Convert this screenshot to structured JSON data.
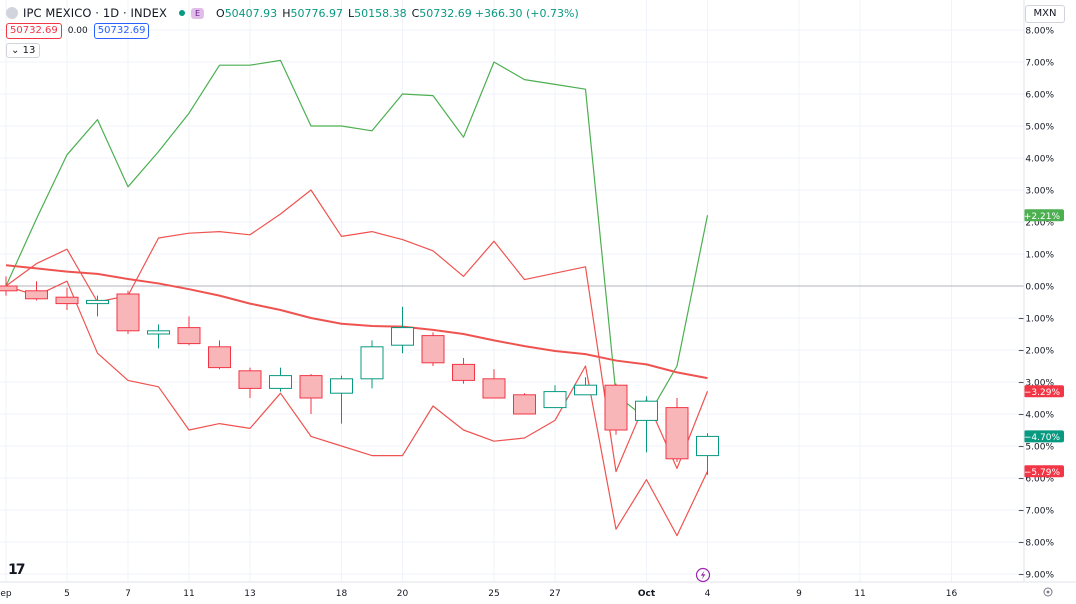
{
  "header": {
    "symbol": "IPC MEXICO · 1D · INDEX",
    "event_badge": "E",
    "open_label": "O",
    "open": "50407.93",
    "high_label": "H",
    "high": "50776.97",
    "low_label": "L",
    "low": "50158.38",
    "close_label": "C",
    "close": "50732.69",
    "change": "+366.30 (+0.73%)"
  },
  "quote": {
    "bid": "50732.69",
    "spread": "0.00",
    "ask": "50732.69"
  },
  "indicator_count": "13",
  "currency": "MXN",
  "colors": {
    "up": "#089981",
    "down": "#f23645",
    "green_line": "#4caf50",
    "red_line": "#ef5350",
    "grid": "#f0f3fa",
    "text": "#131722"
  },
  "chart_data": {
    "type": "candlestick",
    "y_unit": "percent",
    "ylim": [
      -9.3,
      8.3
    ],
    "y_ticks": [
      "8.00%",
      "7.00%",
      "6.00%",
      "5.00%",
      "4.00%",
      "3.00%",
      "2.00%",
      "1.00%",
      "0.00%",
      "−1.00%",
      "−2.00%",
      "−3.00%",
      "−4.00%",
      "−5.00%",
      "−6.00%",
      "−7.00%",
      "−8.00%",
      "−9.00%"
    ],
    "x_ticks": [
      {
        "label": "ep",
        "i": 0
      },
      {
        "label": "5",
        "i": 2
      },
      {
        "label": "7",
        "i": 4
      },
      {
        "label": "11",
        "i": 6
      },
      {
        "label": "13",
        "i": 8
      },
      {
        "label": "18",
        "i": 11
      },
      {
        "label": "20",
        "i": 13
      },
      {
        "label": "25",
        "i": 16
      },
      {
        "label": "27",
        "i": 18
      },
      {
        "label": "Oct",
        "i": 21
      },
      {
        "label": "4",
        "i": 23
      },
      {
        "label": "9",
        "i": 26
      },
      {
        "label": "11",
        "i": 28
      },
      {
        "label": "16",
        "i": 31
      }
    ],
    "candles": [
      {
        "o": 0.0,
        "h": 0.3,
        "l": -0.3,
        "c": -0.15
      },
      {
        "o": -0.15,
        "h": 0.15,
        "l": -0.45,
        "c": -0.4
      },
      {
        "o": -0.35,
        "h": -0.05,
        "l": -0.75,
        "c": -0.55
      },
      {
        "o": -0.55,
        "h": -0.3,
        "l": -0.95,
        "c": -0.45
      },
      {
        "o": -0.25,
        "h": -0.15,
        "l": -1.5,
        "c": -1.4
      },
      {
        "o": -1.5,
        "h": -1.2,
        "l": -1.95,
        "c": -1.4
      },
      {
        "o": -1.3,
        "h": -0.95,
        "l": -1.85,
        "c": -1.8
      },
      {
        "o": -1.9,
        "h": -1.7,
        "l": -2.6,
        "c": -2.55
      },
      {
        "o": -2.65,
        "h": -2.55,
        "l": -3.5,
        "c": -3.2
      },
      {
        "o": -3.2,
        "h": -2.55,
        "l": -3.3,
        "c": -2.8
      },
      {
        "o": -2.8,
        "h": -2.75,
        "l": -4.0,
        "c": -3.5
      },
      {
        "o": -3.35,
        "h": -2.8,
        "l": -4.3,
        "c": -2.9
      },
      {
        "o": -2.9,
        "h": -1.7,
        "l": -3.2,
        "c": -1.9
      },
      {
        "o": -1.85,
        "h": -0.65,
        "l": -2.1,
        "c": -1.3
      },
      {
        "o": -1.55,
        "h": -1.45,
        "l": -2.5,
        "c": -2.4
      },
      {
        "o": -2.45,
        "h": -2.25,
        "l": -3.05,
        "c": -2.95
      },
      {
        "o": -2.9,
        "h": -2.6,
        "l": -3.5,
        "c": -3.5
      },
      {
        "o": -3.4,
        "h": -3.35,
        "l": -4.0,
        "c": -4.0
      },
      {
        "o": -3.8,
        "h": -3.1,
        "l": -3.8,
        "c": -3.3
      },
      {
        "o": -3.4,
        "h": -2.85,
        "l": -3.4,
        "c": -3.1
      },
      {
        "o": -3.1,
        "h": -3.05,
        "l": -4.65,
        "c": -4.5
      },
      {
        "o": -4.2,
        "h": -3.45,
        "l": -5.2,
        "c": -3.6
      },
      {
        "o": -3.8,
        "h": -3.5,
        "l": -5.5,
        "c": -5.4
      },
      {
        "o": -5.3,
        "h": -4.6,
        "l": -5.9,
        "c": -4.7
      }
    ],
    "series": [
      {
        "values": [
          0.0,
          2.1,
          4.1,
          5.2,
          3.1,
          4.2,
          5.4,
          6.9,
          6.9,
          7.05,
          5.0,
          5.0,
          4.85,
          6.0,
          5.95,
          4.65,
          7.0,
          6.45,
          6.3,
          6.15,
          -3.4,
          -4.15,
          -2.5,
          2.21
        ]
      },
      {
        "values": [
          0.0,
          0.7,
          1.15,
          -0.5,
          -0.3,
          1.5,
          1.65,
          1.7,
          1.6,
          2.25,
          3.0,
          1.55,
          1.7,
          1.45,
          1.1,
          0.3,
          1.4,
          0.2,
          0.4,
          0.6,
          -5.8,
          -3.55,
          -5.7,
          -3.29
        ]
      },
      {
        "values": [
          0.0,
          -0.3,
          0.15,
          -2.1,
          -2.95,
          -3.15,
          -4.5,
          -4.3,
          -4.45,
          -3.35,
          -4.7,
          -5.0,
          -5.3,
          -5.3,
          -3.75,
          -4.5,
          -4.85,
          -4.75,
          -4.2,
          -2.5,
          -7.6,
          -6.05,
          -7.8,
          -5.79
        ]
      },
      {
        "values": [
          0.65,
          0.55,
          0.45,
          0.38,
          0.22,
          0.08,
          -0.1,
          -0.3,
          -0.55,
          -0.75,
          -1.0,
          -1.18,
          -1.25,
          -1.27,
          -1.37,
          -1.5,
          -1.7,
          -1.88,
          -2.03,
          -2.13,
          -2.33,
          -2.45,
          -2.7,
          -2.88
        ]
      }
    ],
    "price_labels": [
      "+2.21%",
      "−3.29%",
      "−4.70%",
      "−5.79%"
    ]
  }
}
